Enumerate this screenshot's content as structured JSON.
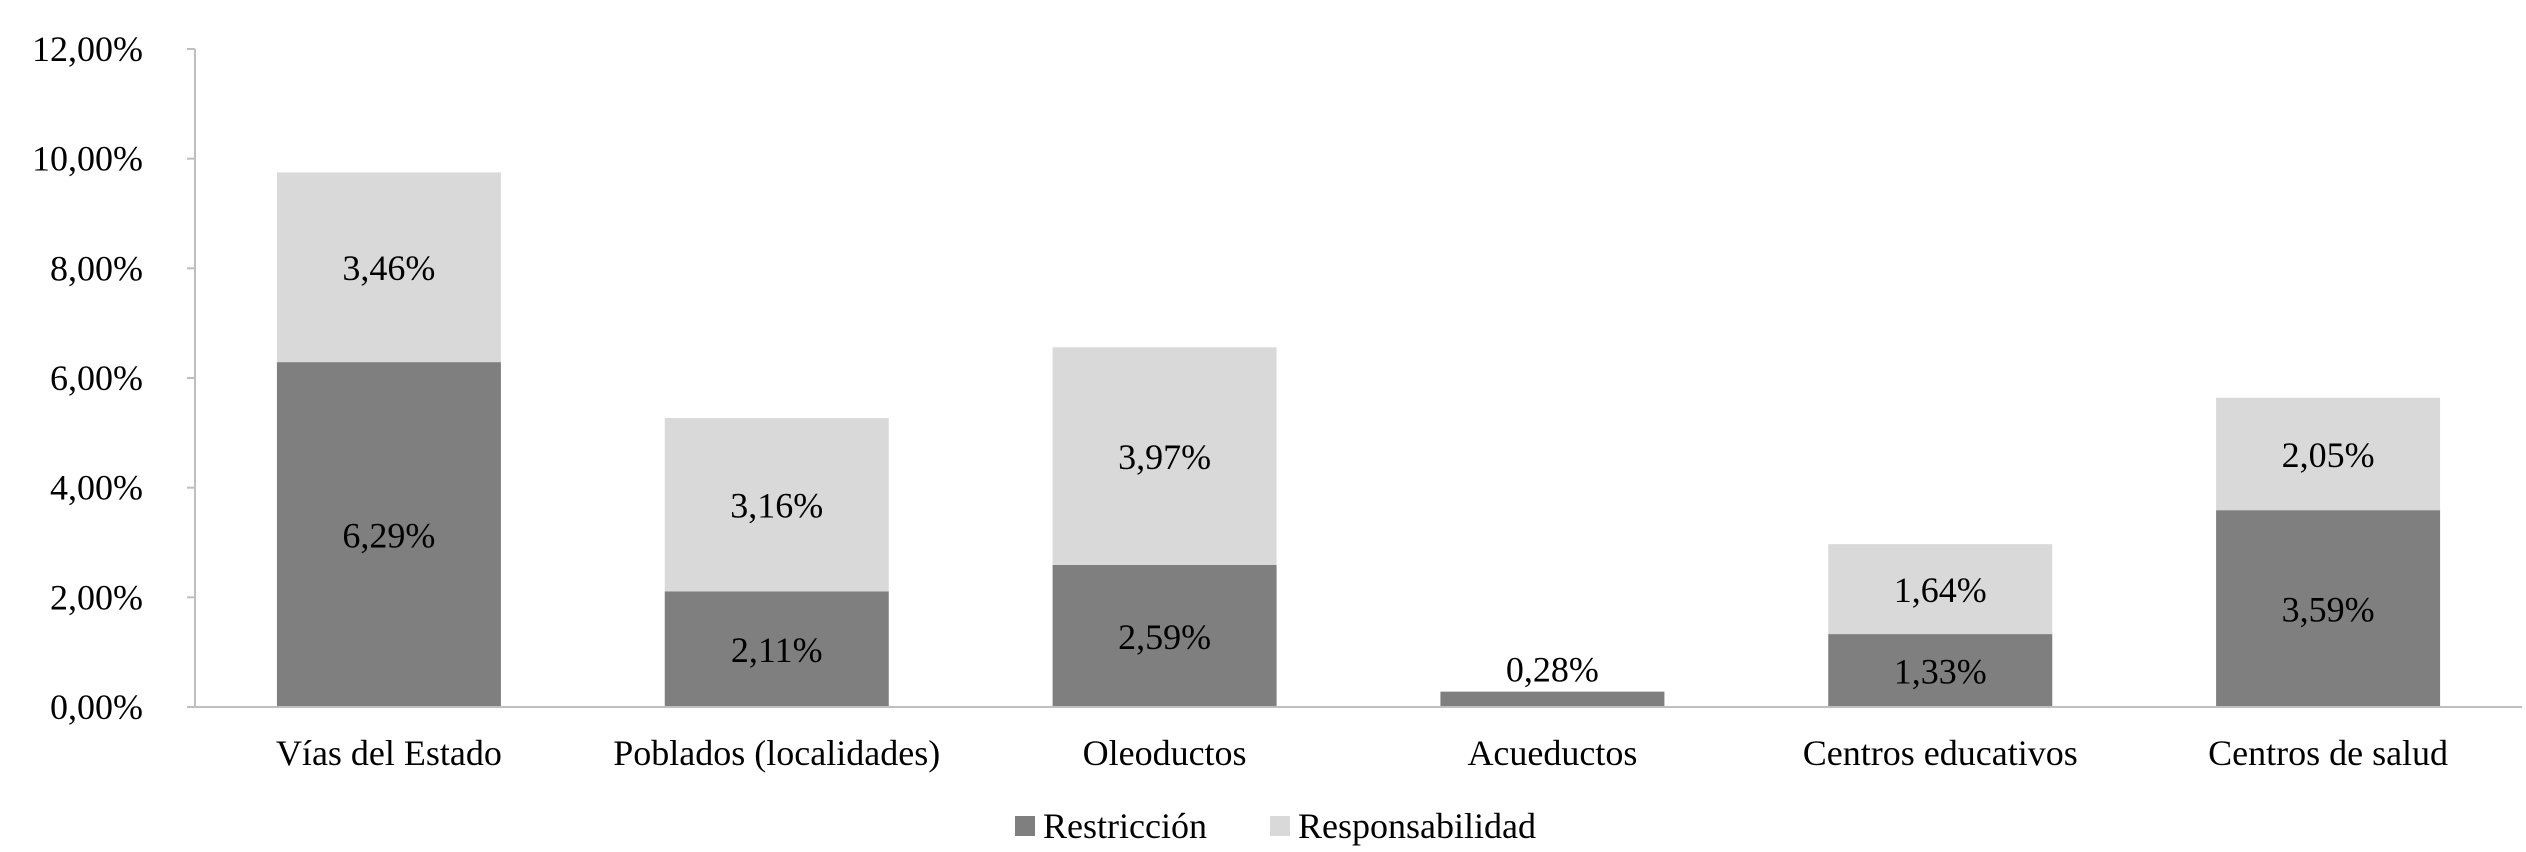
{
  "chart_data": {
    "type": "bar",
    "stacked": true,
    "categories": [
      "Vías del Estado",
      "Poblados (localidades)",
      "Oleoductos",
      "Acueductos",
      "Centros educativos",
      "Centros de salud"
    ],
    "series": [
      {
        "name": "Restricción",
        "values": [
          6.29,
          2.11,
          2.59,
          0.28,
          1.33,
          3.59
        ],
        "labels": [
          "6,29%",
          "2,11%",
          "2,59%",
          "0,28%",
          "1,33%",
          "3,59%"
        ],
        "color": "#7f7f7f"
      },
      {
        "name": "Responsabilidad",
        "values": [
          3.46,
          3.16,
          3.97,
          0,
          1.64,
          2.05
        ],
        "labels": [
          "3,46%",
          "3,16%",
          "3,97%",
          "",
          "1,64%",
          "2,05%"
        ],
        "color": "#d9d9d9"
      }
    ],
    "ylim": [
      0,
      12
    ],
    "yticks": [
      0,
      2,
      4,
      6,
      8,
      10,
      12
    ],
    "ytick_labels": [
      "0,00%",
      "2,00%",
      "4,00%",
      "6,00%",
      "8,00%",
      "10,00%",
      "12,00%"
    ],
    "grid": false,
    "legend_position": "bottom"
  }
}
